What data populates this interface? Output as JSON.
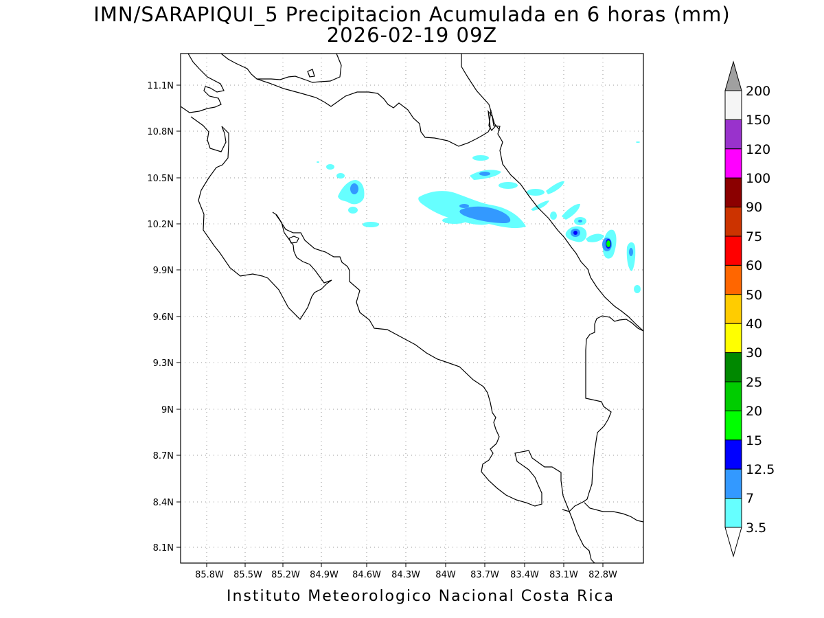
{
  "title_line1": "IMN/SARAPIQUI_5 Precipitacion Acumulada en 6 horas (mm)",
  "title_line2": "2026-02-19 09Z",
  "footer": "Instituto Meteorologico Nacional Costa Rica",
  "map": {
    "lon_range": [
      -86.0,
      -82.5
    ],
    "lat_range": [
      8.0,
      11.2
    ],
    "x_tick_labels": [
      "85.8W",
      "85.5W",
      "85.2W",
      "84.9W",
      "84.6W",
      "84.3W",
      "84W",
      "83.7W",
      "83.4W",
      "83.1W",
      "82.8W"
    ],
    "y_tick_labels": [
      "11.1N",
      "10.8N",
      "10.5N",
      "10.2N",
      "9.9N",
      "9.6N",
      "9.3N",
      "9N",
      "8.7N",
      "8.4N",
      "8.1N"
    ],
    "grid": true
  },
  "colorbar": {
    "levels": [
      "200",
      "150",
      "120",
      "100",
      "90",
      "75",
      "60",
      "50",
      "40",
      "30",
      "25",
      "20",
      "15",
      "12.5",
      "7",
      "3.5"
    ],
    "colors": [
      "#f5f5f5",
      "#9932cc",
      "#ff00ff",
      "#8b0000",
      "#cc3300",
      "#ff0000",
      "#ff6600",
      "#ffcc00",
      "#ffff00",
      "#008800",
      "#00cc00",
      "#00ff00",
      "#0000ff",
      "#3399ff",
      "#66ffff"
    ],
    "over_color": "#a0a0a0",
    "under_color": "#ffffff"
  }
}
